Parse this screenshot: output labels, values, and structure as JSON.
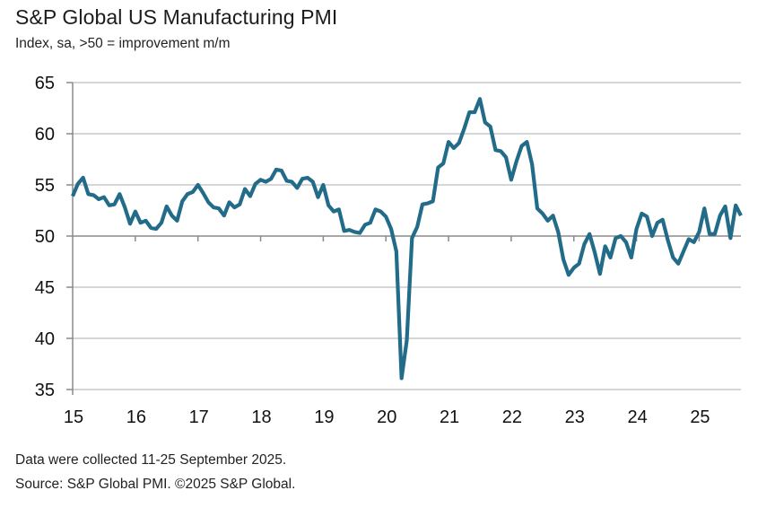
{
  "header": {
    "title": "S&P Global US Manufacturing PMI",
    "subtitle": "Index, sa, >50 = improvement m/m"
  },
  "footer": {
    "note": "Data were collected 11-25 September 2025.",
    "source": "Source: S&P Global PMI. ©2025 S&P Global."
  },
  "colors": {
    "series": "#236c89",
    "grid": "#c8c8c8",
    "axis": "#8a8a8a"
  },
  "chart_data": {
    "type": "line",
    "title": "S&P Global US Manufacturing PMI",
    "subtitle": "Index, sa, >50 = improvement m/m",
    "xlabel": "",
    "ylabel": "",
    "ylim": [
      35,
      65
    ],
    "yticks": [
      35,
      40,
      45,
      50,
      55,
      60,
      65
    ],
    "xlim": [
      "2015-01",
      "2025-09"
    ],
    "xticks": [
      {
        "label": "15",
        "year": 2015
      },
      {
        "label": "16",
        "year": 2016
      },
      {
        "label": "17",
        "year": 2017
      },
      {
        "label": "18",
        "year": 2018
      },
      {
        "label": "19",
        "year": 2019
      },
      {
        "label": "20",
        "year": 2020
      },
      {
        "label": "21",
        "year": 2021
      },
      {
        "label": "22",
        "year": 2022
      },
      {
        "label": "23",
        "year": 2023
      },
      {
        "label": "24",
        "year": 2024
      },
      {
        "label": "25",
        "year": 2025
      }
    ],
    "reference_line": 50,
    "grid": true,
    "legend": "none",
    "start": "2015-01",
    "frequency": "monthly",
    "series": [
      {
        "name": "S&P Global US Manufacturing PMI",
        "values": [
          53.9,
          55.1,
          55.7,
          54.1,
          54.0,
          53.6,
          53.8,
          53.0,
          53.1,
          54.1,
          52.8,
          51.2,
          52.4,
          51.3,
          51.5,
          50.8,
          50.7,
          51.3,
          52.9,
          52.0,
          51.5,
          53.4,
          54.1,
          54.3,
          55.0,
          54.2,
          53.3,
          52.8,
          52.7,
          52.0,
          53.3,
          52.8,
          53.1,
          54.6,
          53.9,
          55.1,
          55.5,
          55.3,
          55.6,
          56.5,
          56.4,
          55.4,
          55.3,
          54.7,
          55.6,
          55.7,
          55.3,
          53.8,
          55.0,
          53.0,
          52.4,
          52.6,
          50.5,
          50.6,
          50.4,
          50.3,
          51.1,
          51.3,
          52.6,
          52.4,
          51.9,
          50.7,
          48.5,
          36.1,
          39.8,
          49.8,
          50.9,
          53.1,
          53.2,
          53.4,
          56.7,
          57.1,
          59.2,
          58.6,
          59.1,
          60.5,
          62.1,
          62.1,
          63.4,
          61.1,
          60.7,
          58.4,
          58.3,
          57.7,
          55.5,
          57.3,
          58.8,
          59.2,
          57.0,
          52.7,
          52.2,
          51.5,
          52.0,
          50.4,
          47.7,
          46.2,
          46.9,
          47.3,
          49.2,
          50.2,
          48.4,
          46.3,
          49.0,
          47.9,
          49.8,
          50.0,
          49.4,
          47.9,
          50.7,
          52.2,
          51.9,
          50.0,
          51.3,
          51.6,
          49.6,
          47.9,
          47.3,
          48.5,
          49.7,
          49.4,
          50.4,
          52.7,
          50.2,
          50.2,
          52.0,
          52.9,
          49.8,
          53.0,
          52.0
        ]
      }
    ]
  }
}
